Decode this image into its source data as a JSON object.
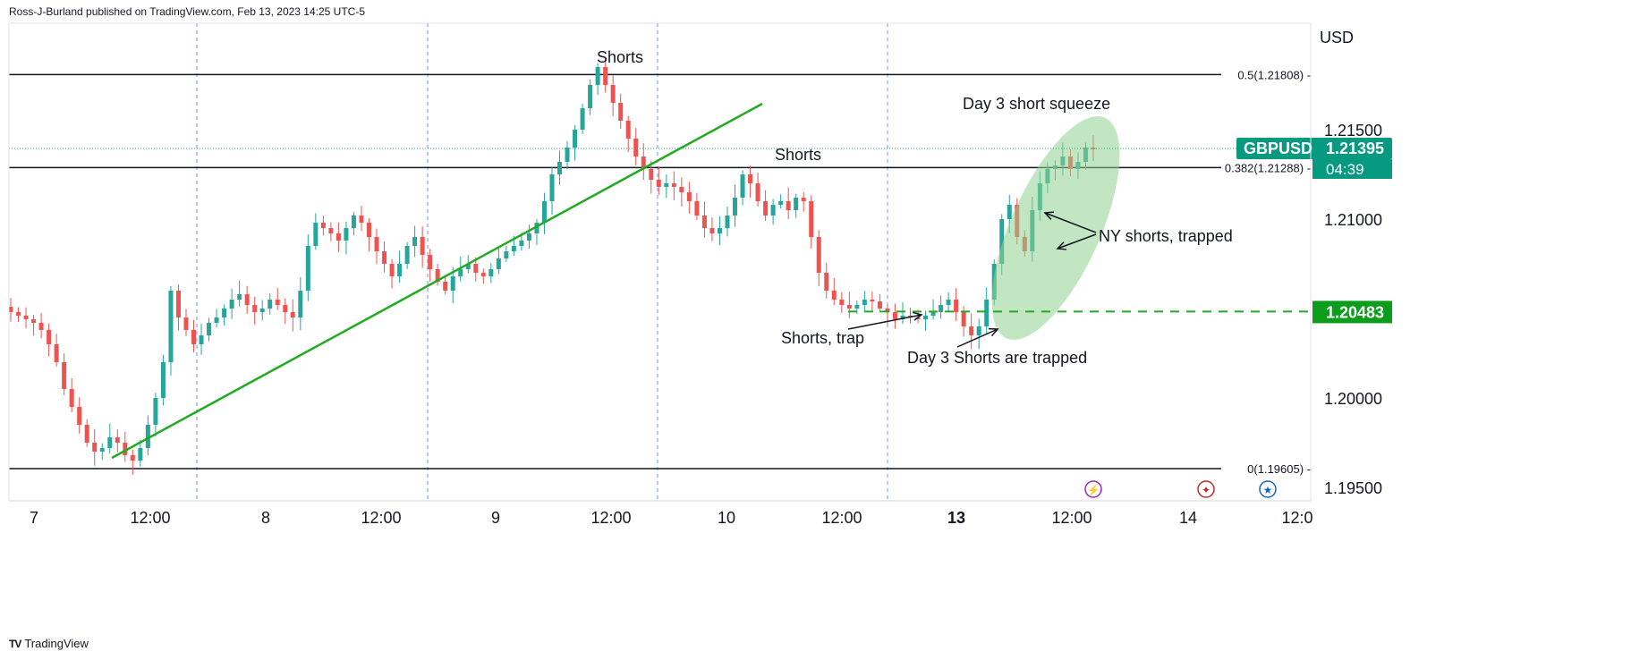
{
  "publisher": "Ross-J-Burland published on TradingView.com, Feb 13, 2023 14:25 UTC-5",
  "brand": "TradingView",
  "brand_logo": "TV",
  "currency": "USD",
  "symbol": "GBPUSD",
  "last_price": "1.21395",
  "countdown": "04:39",
  "colors": {
    "up": "#26a69a",
    "down": "#ef5350",
    "accent": "#089981",
    "green_line": "#22ab22",
    "ellipse": "#8fd18f",
    "grid": "#2962ff"
  },
  "chart_data": {
    "type": "candlestick",
    "y_axis": {
      "ylim": [
        1.195,
        1.22
      ],
      "ticks": [
        "1.19500",
        "1.20000",
        "1.21000",
        "1.21500"
      ]
    },
    "x_axis": {
      "tick_labels": [
        "7",
        "12:00",
        "8",
        "12:00",
        "9",
        "12:00",
        "10",
        "12:00",
        "13",
        "12:00",
        "14",
        "12:0"
      ]
    },
    "fib_levels": [
      {
        "label": "0.5(1.21808)",
        "price": 1.21808
      },
      {
        "label": "0.382(1.21288)",
        "price": 1.21288
      },
      {
        "label": "0(1.19605)",
        "price": 1.19605
      }
    ],
    "support_price": 1.20483,
    "support_label": "1.20483",
    "last_close": 1.21395,
    "annotations": {
      "shorts_top": "Shorts",
      "shorts_mid": "Shorts",
      "squeeze": "Day 3 short squeeze",
      "ny_shorts": "NY shorts, trapped",
      "shorts_trap": "Shorts, trap",
      "day3_trapped": "Day 3 Shorts are trapped"
    },
    "series_closes": [
      1.2048,
      1.2046,
      1.2044,
      1.2042,
      1.2038,
      1.203,
      1.202,
      1.2005,
      1.1995,
      1.1985,
      1.1975,
      1.197,
      1.1972,
      1.1978,
      1.1975,
      1.1968,
      1.1965,
      1.1972,
      1.1985,
      1.2,
      1.202,
      1.206,
      1.2045,
      1.2038,
      1.203,
      1.2035,
      1.2042,
      1.2045,
      1.205,
      1.2055,
      1.2058,
      1.2052,
      1.2048,
      1.205,
      1.2055,
      1.2052,
      1.2048,
      1.2045,
      1.206,
      1.2085,
      1.2098,
      1.2095,
      1.2092,
      1.2088,
      1.2095,
      1.2102,
      1.2098,
      1.209,
      1.2082,
      1.2075,
      1.2068,
      1.2075,
      1.2085,
      1.209,
      1.208,
      1.2072,
      1.2065,
      1.206,
      1.2068,
      1.2072,
      1.2075,
      1.207,
      1.2068,
      1.2072,
      1.2078,
      1.2082,
      1.2085,
      1.2088,
      1.2092,
      1.2098,
      1.211,
      1.2125,
      1.2132,
      1.214,
      1.215,
      1.2162,
      1.2175,
      1.2185,
      1.2175,
      1.2165,
      1.2155,
      1.2145,
      1.2135,
      1.2128,
      1.2122,
      1.2118,
      1.212,
      1.2118,
      1.2115,
      1.211,
      1.2102,
      1.2095,
      1.2092,
      1.2095,
      1.2102,
      1.2112,
      1.2125,
      1.212,
      1.211,
      1.2102,
      1.2108,
      1.211,
      1.2105,
      1.2112,
      1.211,
      1.209,
      1.207,
      1.206,
      1.2055,
      1.2052,
      1.205,
      1.2052,
      1.2055,
      1.2054,
      1.205,
      1.2048,
      1.2044,
      1.2046,
      1.2045,
      1.2044,
      1.2046,
      1.2048,
      1.2052,
      1.2055,
      1.2048,
      1.204,
      1.2035,
      1.204,
      1.2055,
      1.2075,
      1.21,
      1.2108,
      1.209,
      1.2082,
      1.2105,
      1.212,
      1.2128,
      1.213,
      1.2135,
      1.2128,
      1.2132,
      1.214,
      1.2139
    ]
  }
}
